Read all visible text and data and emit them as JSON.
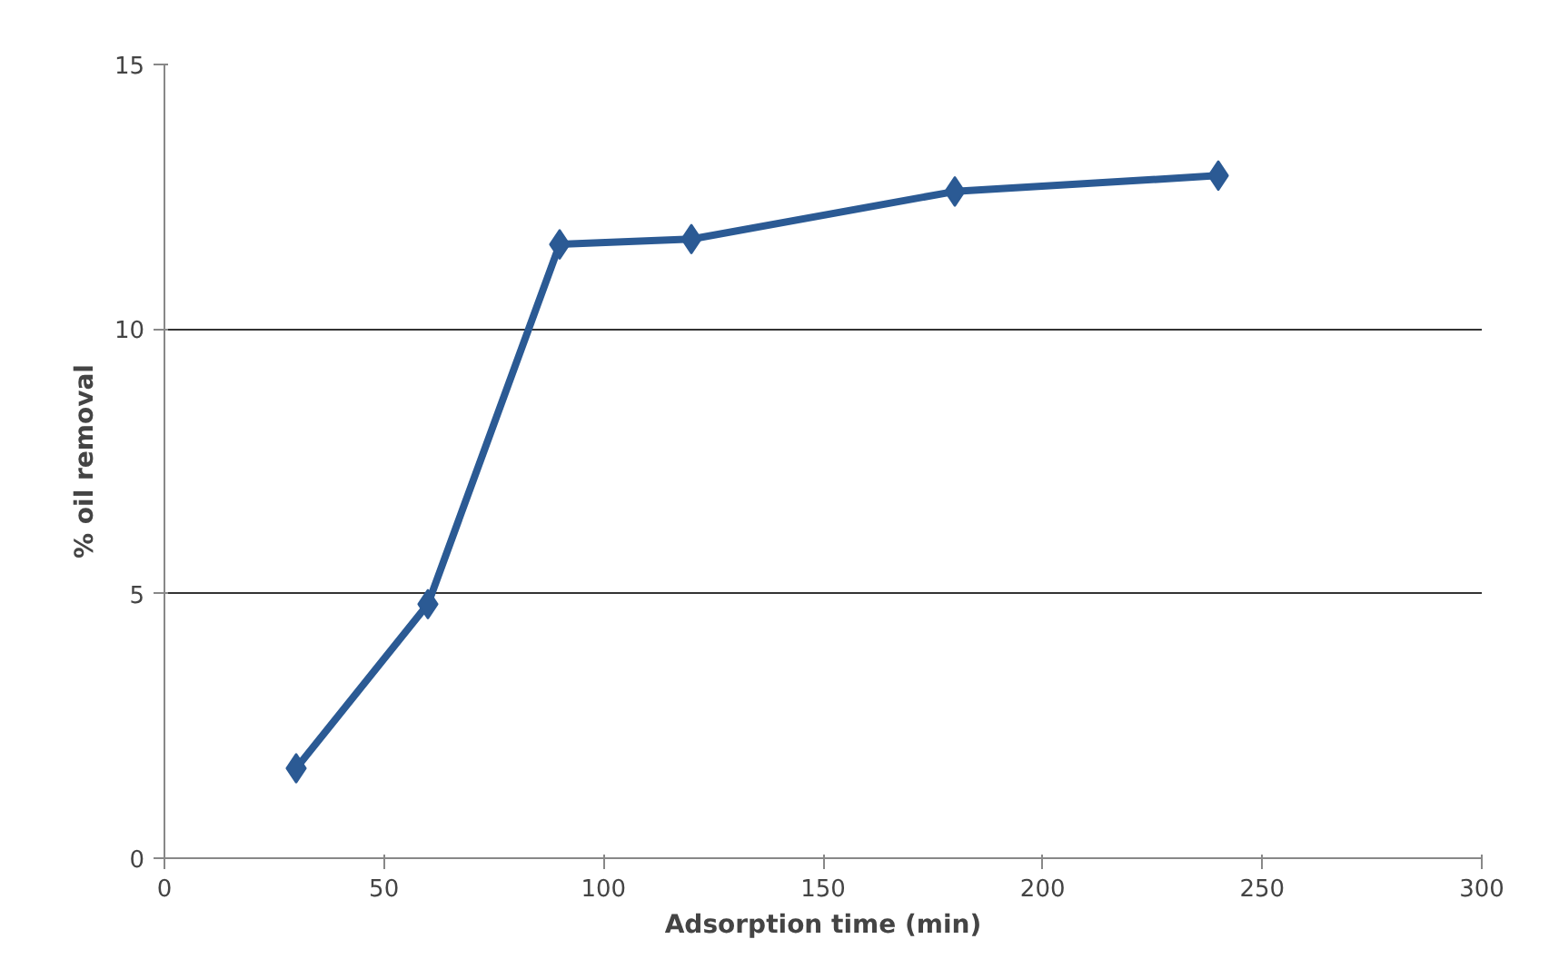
{
  "chart_data": {
    "type": "line",
    "xlabel": "Adsorption time (min)",
    "ylabel": "% oil removal",
    "x": [
      30,
      60,
      90,
      120,
      180,
      240
    ],
    "series": [
      {
        "color": "#2b5a94",
        "values": [
          1.7,
          4.8,
          11.6,
          11.7,
          12.6,
          12.9
        ]
      }
    ],
    "xlim": [
      0,
      300
    ],
    "xticks": [
      0,
      50,
      100,
      150,
      200,
      250,
      300
    ],
    "ylim": [
      0,
      15
    ],
    "yticks": [
      0,
      5,
      10,
      15
    ],
    "grid": "y",
    "marker": "diamond",
    "line_style": "solid"
  }
}
